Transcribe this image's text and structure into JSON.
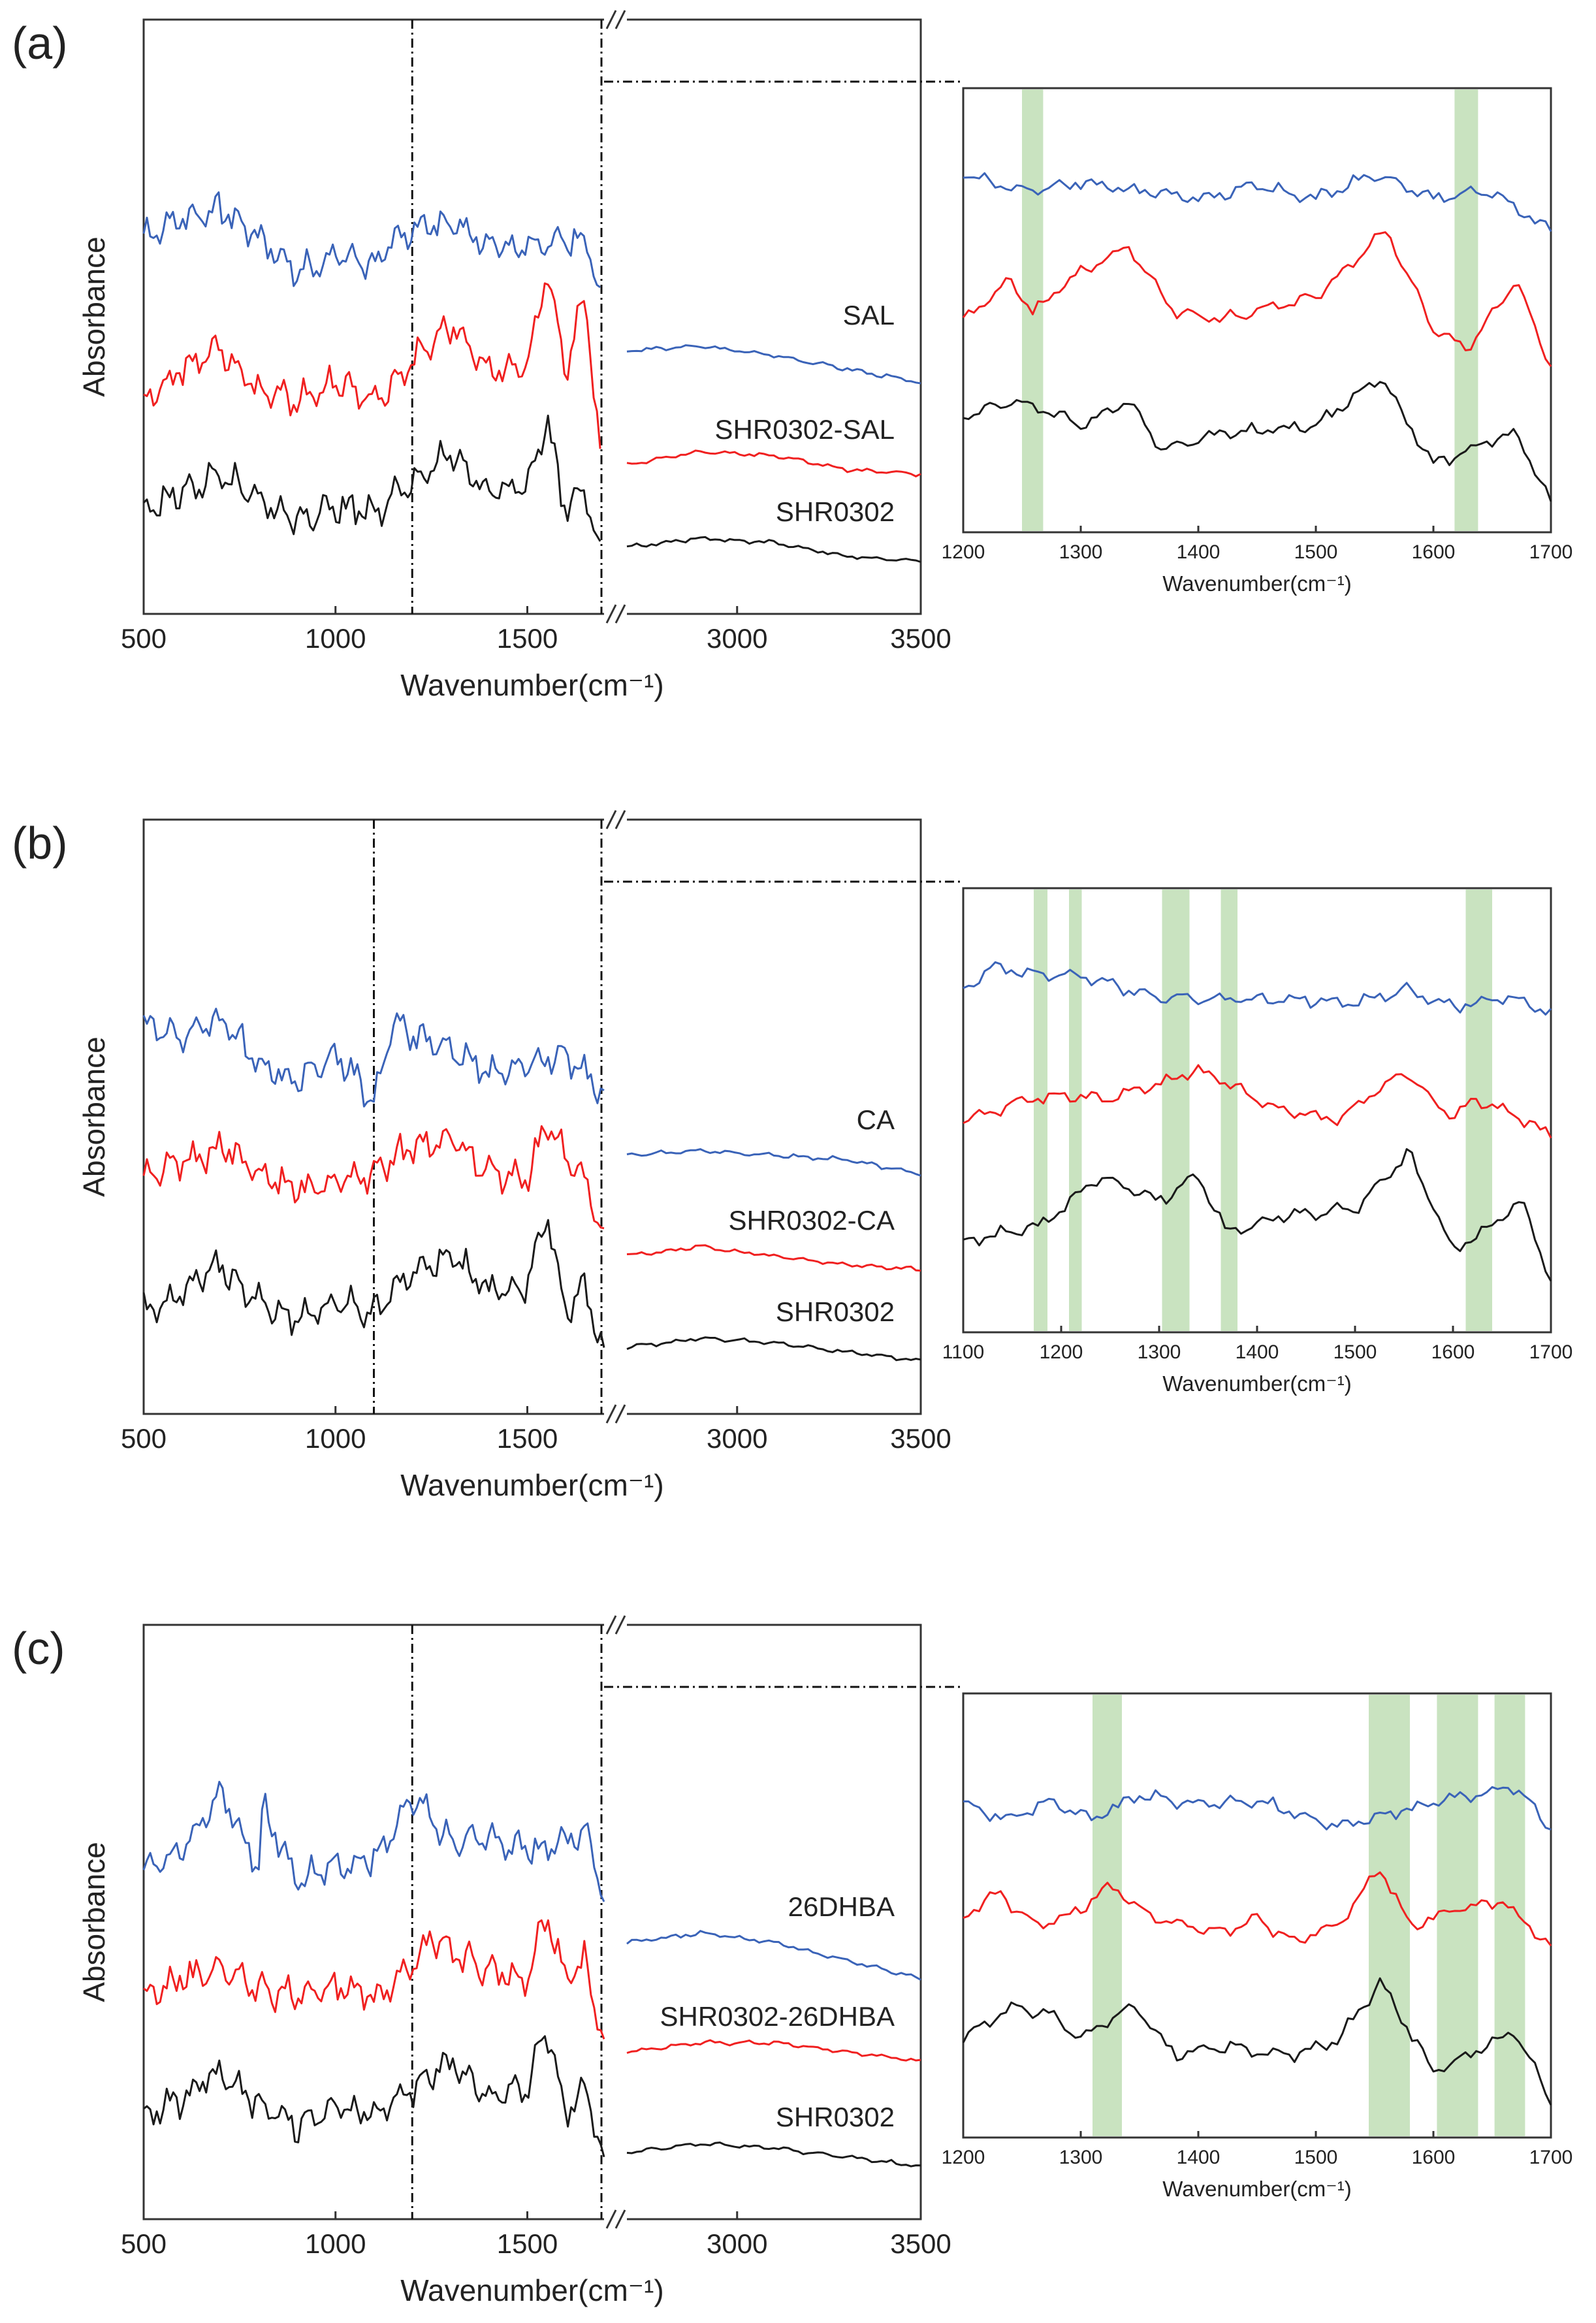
{
  "figure": {
    "colors": {
      "blue": "#3a63b8",
      "red": "#f02020",
      "black": "#1a1a1a",
      "highlight": "#c9e3c0",
      "axis": "#333333"
    },
    "panels": [
      {
        "letter": "(a)",
        "main": {
          "ylabel": "Absorbance",
          "xlabel": "Wavenumber(cm⁻¹)",
          "ticks_left": [
            "500",
            "1000",
            "1500"
          ],
          "ticks_right": [
            "3000",
            "3500"
          ],
          "vline": 1200,
          "break_at": 1700
        },
        "zoom": {
          "xlabel": "Wavenumber(cm⁻¹)",
          "xlim": [
            1200,
            1700
          ],
          "ticks": [
            "1200",
            "1300",
            "1400",
            "1500",
            "1600",
            "1700"
          ],
          "bands": [
            [
              1250,
              1268
            ],
            [
              1618,
              1638
            ]
          ]
        },
        "series": [
          {
            "name": "SAL",
            "color": "blue"
          },
          {
            "name": "SHR0302-SAL",
            "color": "red"
          },
          {
            "name": "SHR0302",
            "color": "black"
          }
        ]
      },
      {
        "letter": "(b)",
        "main": {
          "ylabel": "Absorbance",
          "xlabel": "Wavenumber(cm⁻¹)",
          "ticks_left": [
            "500",
            "1000",
            "1500"
          ],
          "ticks_right": [
            "3000",
            "3500"
          ],
          "vline": 1100,
          "break_at": 1700
        },
        "zoom": {
          "xlabel": "Wavenumber(cm⁻¹)",
          "xlim": [
            1100,
            1700
          ],
          "ticks": [
            "1100",
            "1200",
            "1300",
            "1400",
            "1500",
            "1600",
            "1700"
          ],
          "bands": [
            [
              1172,
              1186
            ],
            [
              1208,
              1221
            ],
            [
              1303,
              1331
            ],
            [
              1363,
              1380
            ],
            [
              1613,
              1640
            ]
          ]
        },
        "series": [
          {
            "name": "CA",
            "color": "blue"
          },
          {
            "name": "SHR0302-CA",
            "color": "red"
          },
          {
            "name": "SHR0302",
            "color": "black"
          }
        ]
      },
      {
        "letter": "(c)",
        "main": {
          "ylabel": "Absorbance",
          "xlabel": "Wavenumber(cm⁻¹)",
          "ticks_left": [
            "500",
            "1000",
            "1500"
          ],
          "ticks_right": [
            "3000",
            "3500"
          ],
          "vline": 1200,
          "break_at": 1700
        },
        "zoom": {
          "xlabel": "Wavenumber(cm⁻¹)",
          "xlim": [
            1200,
            1700
          ],
          "ticks": [
            "1200",
            "1300",
            "1400",
            "1500",
            "1600",
            "1700"
          ],
          "bands": [
            [
              1310,
              1335
            ],
            [
              1545,
              1580
            ],
            [
              1603,
              1638
            ],
            [
              1652,
              1678
            ]
          ]
        },
        "series": [
          {
            "name": "26DHBA",
            "color": "blue"
          },
          {
            "name": "SHR0302-26DHBA",
            "color": "red"
          },
          {
            "name": "SHR0302",
            "color": "black"
          }
        ]
      }
    ]
  },
  "chart_data": [
    {
      "type": "line",
      "title": "",
      "xlabel": "Wavenumber(cm⁻¹)",
      "ylabel": "Absorbance",
      "xlim": [
        500,
        3500
      ],
      "axis_break": [
        1700,
        2700
      ],
      "series": [
        {
          "name": "SAL",
          "x": [
            500,
            600,
            700,
            800,
            900,
            1000,
            1100,
            1200,
            1300,
            1400,
            1500,
            1600,
            1660,
            1690,
            2700,
            2900,
            3100,
            3300,
            3500
          ],
          "y": [
            0.74,
            0.78,
            0.8,
            0.74,
            0.66,
            0.7,
            0.68,
            0.76,
            0.77,
            0.72,
            0.72,
            0.74,
            0.73,
            0.6,
            0.49,
            0.5,
            0.48,
            0.45,
            0.42
          ]
        },
        {
          "name": "SHR0302-SAL",
          "x": [
            500,
            600,
            700,
            800,
            900,
            1000,
            1100,
            1200,
            1300,
            1400,
            1500,
            1550,
            1600,
            1650,
            1690,
            2700,
            2900,
            3100,
            3300,
            3500
          ],
          "y": [
            0.38,
            0.45,
            0.5,
            0.4,
            0.38,
            0.42,
            0.38,
            0.46,
            0.55,
            0.44,
            0.46,
            0.66,
            0.44,
            0.62,
            0.26,
            0.24,
            0.27,
            0.26,
            0.23,
            0.22
          ]
        },
        {
          "name": "SHR0302",
          "x": [
            500,
            600,
            700,
            800,
            900,
            1000,
            1100,
            1200,
            1300,
            1400,
            1500,
            1550,
            1600,
            1650,
            1690,
            2700,
            2900,
            3100,
            3300,
            3500
          ],
          "y": [
            0.14,
            0.18,
            0.22,
            0.16,
            0.12,
            0.15,
            0.14,
            0.2,
            0.26,
            0.18,
            0.2,
            0.34,
            0.14,
            0.2,
            0.03,
            0.06,
            0.08,
            0.07,
            0.04,
            0.03
          ]
        }
      ]
    },
    {
      "type": "line",
      "title": "",
      "xlabel": "Wavenumber(cm⁻¹)",
      "xlim": [
        1200,
        1700
      ],
      "series": [
        {
          "name": "SAL",
          "x": [
            1200,
            1250,
            1300,
            1350,
            1400,
            1450,
            1500,
            1550,
            1600,
            1650,
            1700
          ],
          "y": [
            0.86,
            0.82,
            0.84,
            0.82,
            0.8,
            0.83,
            0.8,
            0.86,
            0.8,
            0.82,
            0.72
          ]
        },
        {
          "name": "SHR0302-SAL",
          "x": [
            1200,
            1240,
            1260,
            1290,
            1340,
            1380,
            1420,
            1500,
            1560,
            1600,
            1630,
            1670,
            1700
          ],
          "y": [
            0.5,
            0.6,
            0.52,
            0.6,
            0.68,
            0.52,
            0.5,
            0.56,
            0.72,
            0.48,
            0.43,
            0.6,
            0.38
          ]
        },
        {
          "name": "SHR0302",
          "x": [
            1200,
            1240,
            1270,
            1300,
            1340,
            1370,
            1420,
            1500,
            1555,
            1600,
            1630,
            1670,
            1700
          ],
          "y": [
            0.26,
            0.3,
            0.28,
            0.24,
            0.3,
            0.18,
            0.22,
            0.24,
            0.36,
            0.14,
            0.18,
            0.22,
            0.05
          ]
        }
      ]
    },
    {
      "type": "line",
      "title": "",
      "xlabel": "Wavenumber(cm⁻¹)",
      "ylabel": "Absorbance",
      "xlim": [
        500,
        3500
      ],
      "axis_break": [
        1700,
        2700
      ],
      "series": [
        {
          "name": "CA",
          "x": [
            500,
            600,
            700,
            800,
            900,
            1000,
            1100,
            1150,
            1200,
            1300,
            1400,
            1500,
            1600,
            1700,
            2700,
            2900,
            3100,
            3300,
            3500
          ],
          "y": [
            0.76,
            0.74,
            0.78,
            0.68,
            0.64,
            0.7,
            0.6,
            0.78,
            0.74,
            0.72,
            0.66,
            0.68,
            0.7,
            0.62,
            0.48,
            0.49,
            0.48,
            0.47,
            0.44
          ]
        },
        {
          "name": "SHR0302-CA",
          "x": [
            500,
            600,
            700,
            800,
            900,
            1000,
            1100,
            1200,
            1300,
            1400,
            1500,
            1550,
            1600,
            1650,
            1700,
            2700,
            2900,
            3100,
            3300,
            3500
          ],
          "y": [
            0.44,
            0.46,
            0.5,
            0.44,
            0.4,
            0.42,
            0.44,
            0.5,
            0.52,
            0.44,
            0.42,
            0.56,
            0.48,
            0.42,
            0.3,
            0.26,
            0.28,
            0.26,
            0.24,
            0.23
          ]
        },
        {
          "name": "SHR0302",
          "x": [
            500,
            600,
            700,
            800,
            900,
            1000,
            1100,
            1200,
            1300,
            1400,
            1500,
            1550,
            1600,
            1650,
            1700,
            2700,
            2900,
            3100,
            3300,
            3500
          ],
          "y": [
            0.14,
            0.18,
            0.24,
            0.16,
            0.12,
            0.16,
            0.14,
            0.22,
            0.26,
            0.18,
            0.2,
            0.36,
            0.14,
            0.2,
            0.04,
            0.06,
            0.08,
            0.07,
            0.05,
            0.03
          ]
        }
      ]
    },
    {
      "type": "line",
      "title": "",
      "xlabel": "Wavenumber(cm⁻¹)",
      "xlim": [
        1100,
        1700
      ],
      "series": [
        {
          "name": "CA",
          "x": [
            1100,
            1130,
            1170,
            1220,
            1300,
            1400,
            1500,
            1550,
            1600,
            1650,
            1700
          ],
          "y": [
            0.82,
            0.88,
            0.86,
            0.86,
            0.8,
            0.8,
            0.79,
            0.82,
            0.78,
            0.8,
            0.77
          ]
        },
        {
          "name": "SHR0302-CA",
          "x": [
            1100,
            1150,
            1190,
            1240,
            1340,
            1380,
            1420,
            1480,
            1550,
            1600,
            1620,
            1660,
            1700
          ],
          "y": [
            0.5,
            0.54,
            0.56,
            0.55,
            0.62,
            0.58,
            0.53,
            0.5,
            0.62,
            0.5,
            0.55,
            0.52,
            0.46
          ]
        },
        {
          "name": "SHR0302",
          "x": [
            1100,
            1140,
            1180,
            1240,
            1300,
            1340,
            1370,
            1420,
            1500,
            1555,
            1600,
            1630,
            1670,
            1700
          ],
          "y": [
            0.2,
            0.22,
            0.24,
            0.36,
            0.3,
            0.36,
            0.22,
            0.26,
            0.28,
            0.42,
            0.18,
            0.22,
            0.3,
            0.1
          ]
        }
      ]
    },
    {
      "type": "line",
      "title": "",
      "xlabel": "Wavenumber(cm⁻¹)",
      "ylabel": "Absorbance",
      "xlim": [
        500,
        3500
      ],
      "axis_break": [
        1700,
        2700
      ],
      "series": [
        {
          "name": "26DHBA",
          "x": [
            500,
            600,
            700,
            800,
            810,
            900,
            1000,
            1100,
            1200,
            1300,
            1400,
            1500,
            1600,
            1660,
            1700,
            2700,
            2900,
            3100,
            3300,
            3500
          ],
          "y": [
            0.68,
            0.72,
            0.85,
            0.68,
            0.82,
            0.66,
            0.68,
            0.7,
            0.84,
            0.74,
            0.75,
            0.72,
            0.74,
            0.76,
            0.6,
            0.52,
            0.54,
            0.52,
            0.48,
            0.44
          ]
        },
        {
          "name": "SHR0302-26DHBA",
          "x": [
            500,
            600,
            700,
            800,
            900,
            1000,
            1100,
            1200,
            1250,
            1300,
            1400,
            1500,
            1550,
            1600,
            1650,
            1700,
            2700,
            2900,
            3100,
            3300,
            3500
          ],
          "y": [
            0.4,
            0.44,
            0.46,
            0.42,
            0.4,
            0.42,
            0.4,
            0.46,
            0.54,
            0.5,
            0.46,
            0.44,
            0.58,
            0.44,
            0.48,
            0.3,
            0.28,
            0.3,
            0.3,
            0.28,
            0.26
          ]
        },
        {
          "name": "SHR0302",
          "x": [
            500,
            600,
            700,
            800,
            900,
            1000,
            1100,
            1200,
            1300,
            1400,
            1500,
            1550,
            1600,
            1650,
            1700,
            2700,
            2900,
            3100,
            3300,
            3500
          ],
          "y": [
            0.14,
            0.18,
            0.24,
            0.16,
            0.12,
            0.16,
            0.14,
            0.2,
            0.26,
            0.18,
            0.2,
            0.34,
            0.14,
            0.2,
            0.04,
            0.06,
            0.08,
            0.07,
            0.05,
            0.03
          ]
        }
      ]
    },
    {
      "type": "line",
      "title": "",
      "xlabel": "Wavenumber(cm⁻¹)",
      "xlim": [
        1200,
        1700
      ],
      "series": [
        {
          "name": "26DHBA",
          "x": [
            1200,
            1240,
            1275,
            1310,
            1350,
            1400,
            1450,
            1520,
            1580,
            1625,
            1670,
            1700
          ],
          "y": [
            0.8,
            0.76,
            0.81,
            0.76,
            0.82,
            0.8,
            0.81,
            0.74,
            0.79,
            0.82,
            0.84,
            0.74
          ]
        },
        {
          "name": "SHR0302-26DHBA",
          "x": [
            1200,
            1230,
            1260,
            1290,
            1325,
            1360,
            1420,
            1450,
            1480,
            1520,
            1555,
            1580,
            1620,
            1660,
            1700
          ],
          "y": [
            0.52,
            0.58,
            0.5,
            0.52,
            0.6,
            0.52,
            0.48,
            0.52,
            0.46,
            0.5,
            0.64,
            0.5,
            0.54,
            0.56,
            0.44
          ]
        },
        {
          "name": "SHR0302",
          "x": [
            1200,
            1240,
            1275,
            1300,
            1345,
            1380,
            1420,
            1480,
            1520,
            1555,
            1600,
            1630,
            1670,
            1700
          ],
          "y": [
            0.22,
            0.3,
            0.28,
            0.22,
            0.3,
            0.18,
            0.2,
            0.18,
            0.22,
            0.36,
            0.14,
            0.18,
            0.24,
            0.06
          ]
        }
      ]
    }
  ]
}
